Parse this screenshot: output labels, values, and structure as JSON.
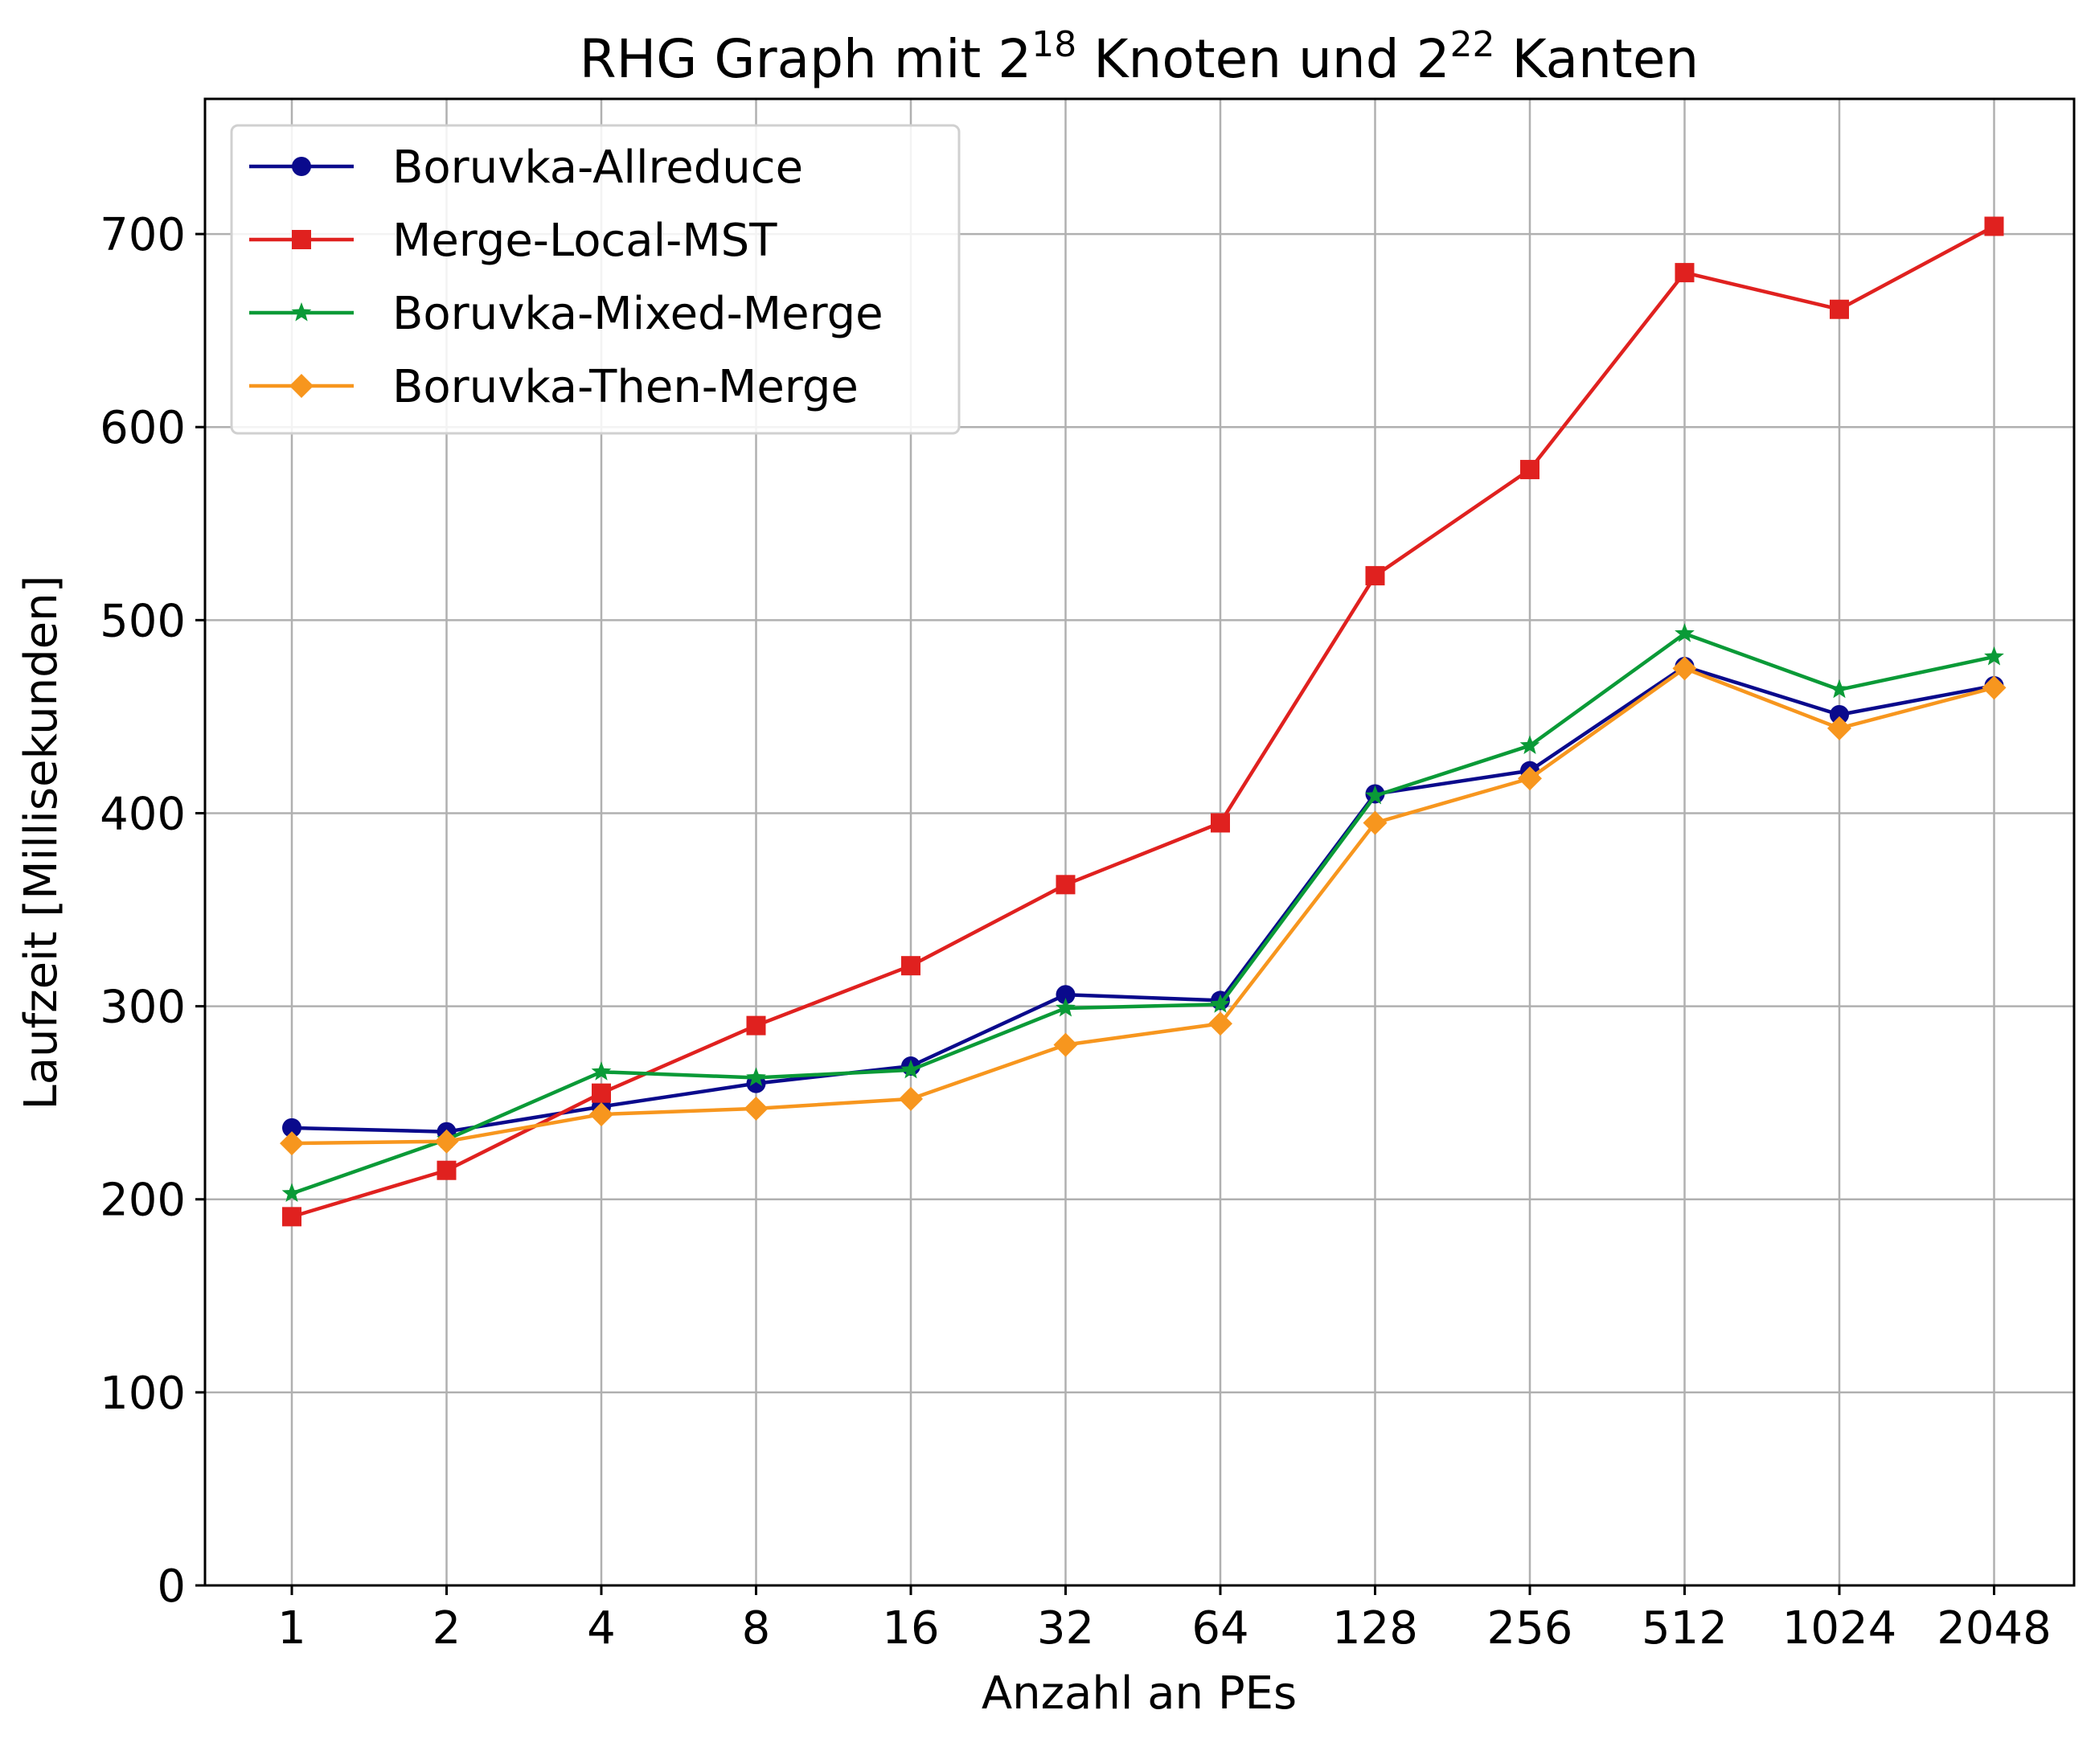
{
  "chart_data": {
    "type": "line",
    "title": {
      "prefix": "RHG Graph mit 2",
      "sup1": "18",
      "middle": " Knoten und 2",
      "sup2": "22",
      "suffix": " Kanten"
    },
    "xlabel": "Anzahl an PEs",
    "ylabel": "Laufzeit [Millisekunden]",
    "categories": [
      "1",
      "2",
      "4",
      "8",
      "16",
      "32",
      "64",
      "128",
      "256",
      "512",
      "1024",
      "2048"
    ],
    "y_ticks": [
      0,
      100,
      200,
      300,
      400,
      500,
      600,
      700
    ],
    "ylim": [
      0,
      770
    ],
    "grid": true,
    "legend_position": "top-left",
    "series": [
      {
        "name": "Boruvka-Allreduce",
        "color": "#0a0a8c",
        "marker": "circle",
        "values": [
          237,
          235,
          248,
          260,
          269,
          306,
          303,
          410,
          422,
          476,
          451,
          466
        ]
      },
      {
        "name": "Merge-Local-MST",
        "color": "#e0211f",
        "marker": "square",
        "values": [
          191,
          215,
          255,
          290,
          321,
          363,
          395,
          523,
          578,
          680,
          661,
          704
        ]
      },
      {
        "name": "Boruvka-Mixed-Merge",
        "color": "#0a9a37",
        "marker": "star",
        "values": [
          203,
          231,
          266,
          263,
          267,
          299,
          301,
          409,
          435,
          493,
          464,
          481
        ]
      },
      {
        "name": "Boruvka-Then-Merge",
        "color": "#f7961e",
        "marker": "diamond",
        "values": [
          229,
          230,
          244,
          247,
          252,
          280,
          291,
          395,
          418,
          475,
          444,
          465
        ]
      }
    ]
  }
}
